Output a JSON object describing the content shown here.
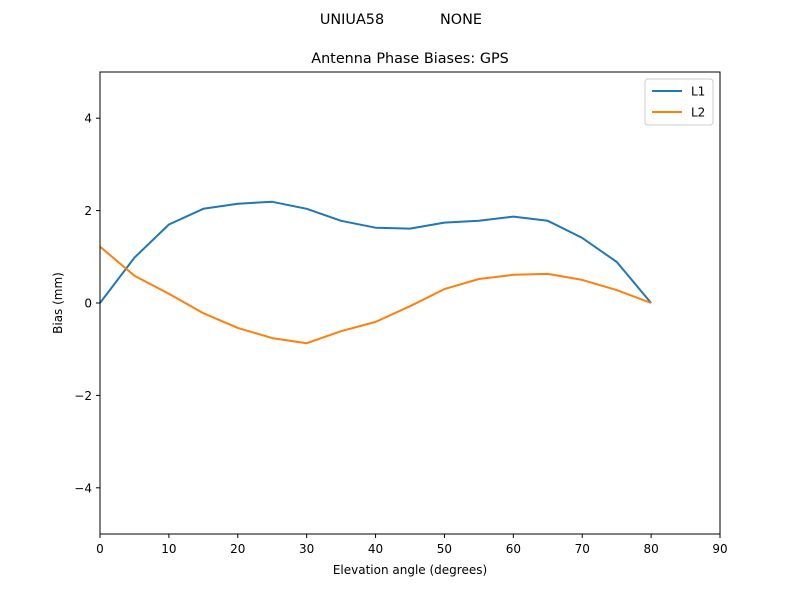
{
  "figure": {
    "suptitle_left": "UNIUA58",
    "suptitle_right": "NONE",
    "title": "Antenna Phase Biases: GPS",
    "xlabel": "Elevation angle (degrees)",
    "ylabel": "Bias (mm)"
  },
  "legend": {
    "items": [
      {
        "label": "L1",
        "color": "#1f77b4"
      },
      {
        "label": "L2",
        "color": "#ff7f0e"
      }
    ]
  },
  "chart_data": {
    "type": "line",
    "title": "Antenna Phase Biases: GPS",
    "suptitle": "UNIUA58          NONE",
    "xlabel": "Elevation angle (degrees)",
    "ylabel": "Bias (mm)",
    "xlim": [
      0,
      90
    ],
    "ylim": [
      -5,
      5
    ],
    "xticks": [
      0,
      10,
      20,
      30,
      40,
      50,
      60,
      70,
      80,
      90
    ],
    "yticks": [
      -4,
      -2,
      0,
      2,
      4
    ],
    "ytick_labels": [
      "−4",
      "−2",
      "0",
      "2",
      "4"
    ],
    "grid": false,
    "legend_position": "upper right",
    "x": [
      0,
      5,
      10,
      15,
      20,
      25,
      30,
      35,
      40,
      45,
      50,
      55,
      60,
      65,
      70,
      75,
      80
    ],
    "series": [
      {
        "name": "L1",
        "color": "#1f77b4",
        "values": [
          0.0,
          0.98,
          1.7,
          2.04,
          2.15,
          2.19,
          2.04,
          1.78,
          1.63,
          1.61,
          1.74,
          1.78,
          1.87,
          1.78,
          1.41,
          0.89,
          0.0
        ]
      },
      {
        "name": "L2",
        "color": "#ff7f0e",
        "values": [
          1.22,
          0.59,
          0.2,
          -0.22,
          -0.54,
          -0.76,
          -0.87,
          -0.61,
          -0.41,
          -0.07,
          0.3,
          0.52,
          0.61,
          0.63,
          0.5,
          0.28,
          0.0
        ]
      }
    ]
  }
}
